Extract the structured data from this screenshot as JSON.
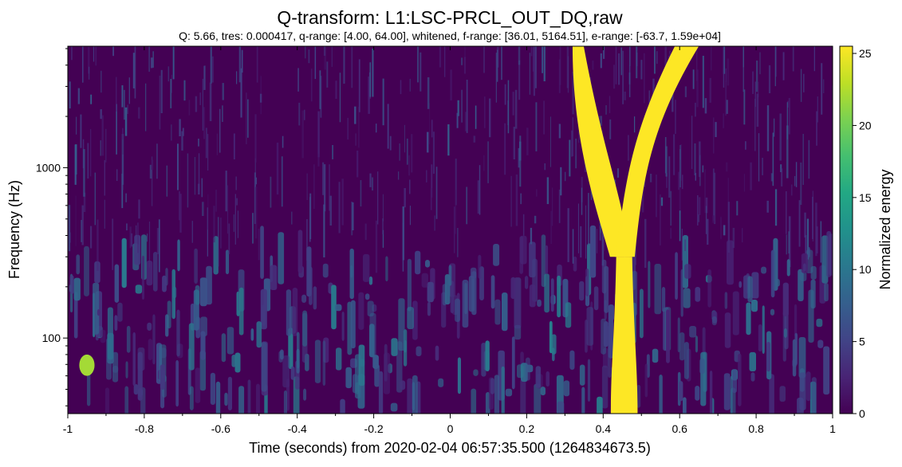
{
  "chart_data": {
    "type": "heatmap",
    "title": "Q-transform: L1:LSC-PRCL_OUT_DQ,raw",
    "subtitle": "Q: 5.66, tres: 0.000417, q-range: [4.00, 64.00], whitened, f-range: [36.01, 5164.51], e-range: [-63.7, 1.59e+04]",
    "xlabel": "Time (seconds) from 2020-02-04 06:57:35.500 (1264834673.5)",
    "ylabel": "Frequency (Hz)",
    "xlim": [
      -1,
      1
    ],
    "ylim": [
      36.01,
      5164.51
    ],
    "yscale": "log",
    "x_ticks": [
      -1,
      -0.8,
      -0.6,
      -0.4,
      -0.2,
      0,
      0.2,
      0.4,
      0.6,
      0.8,
      1
    ],
    "x_tick_labels": [
      "-1",
      "-0.8",
      "-0.6",
      "-0.4",
      "-0.2",
      "0",
      "0.2",
      "0.4",
      "0.6",
      "0.8",
      "1"
    ],
    "y_ticks": [
      100,
      1000
    ],
    "y_tick_labels": [
      "100",
      "1000"
    ],
    "colorbar": {
      "label": "Normalized energy",
      "colormap": "viridis",
      "range": [
        0,
        25.5
      ],
      "ticks": [
        0,
        5,
        10,
        15,
        20,
        25
      ],
      "tick_labels": [
        "0",
        "5",
        "10",
        "15",
        "20",
        "25"
      ]
    },
    "features": [
      {
        "t_start": 0.42,
        "t_end": 0.49,
        "f_low": 36,
        "f_high": 300,
        "peak_energy": 25.5
      },
      {
        "t_start": 0.32,
        "t_end": 0.47,
        "f_low": 300,
        "f_high": 5164,
        "peak_energy": 25.5
      },
      {
        "t_start": 0.42,
        "t_end": 0.65,
        "f_low": 300,
        "f_high": 5164,
        "peak_energy": 25.5
      },
      {
        "t_start": -0.97,
        "t_end": -0.93,
        "f_low": 60,
        "f_high": 80,
        "peak_energy": 22
      }
    ]
  }
}
